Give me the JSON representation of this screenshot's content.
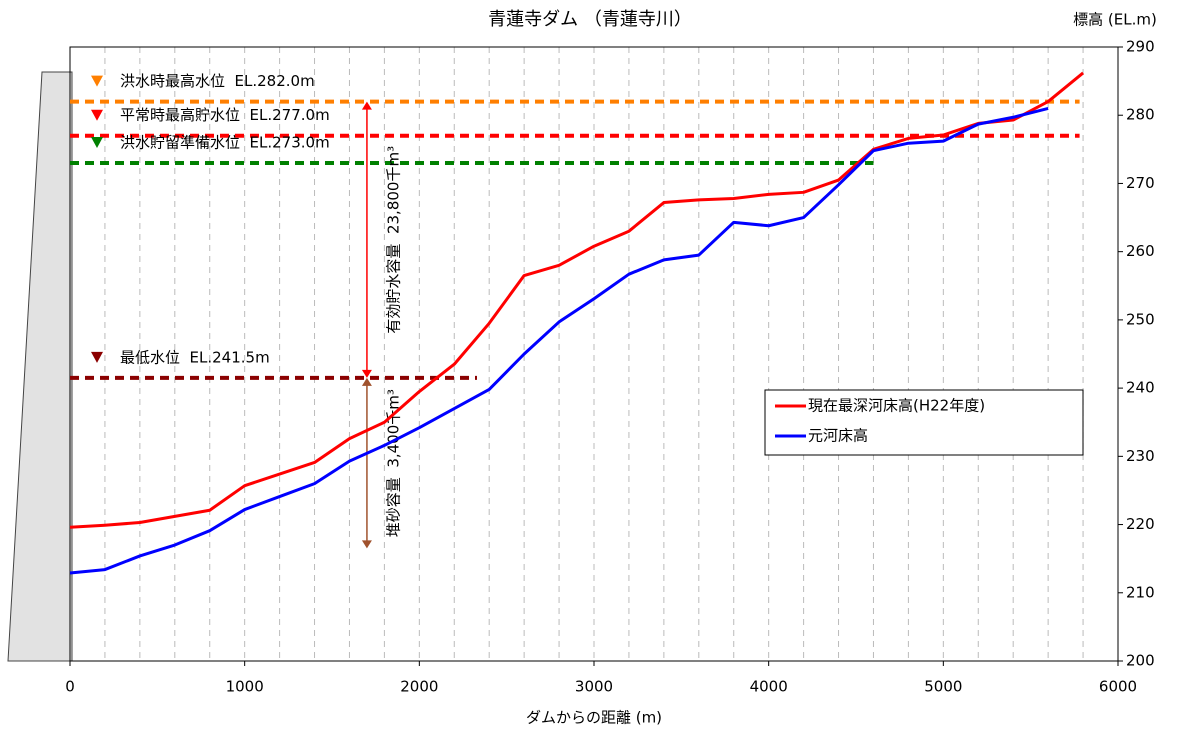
{
  "chart_data": {
    "type": "line",
    "title": "青蓮寺ダム （青蓮寺川）",
    "y_label": "標高 (EL.m)",
    "x_label": "ダムからの距離 (m)",
    "x": [
      0,
      200,
      400,
      600,
      800,
      1000,
      1200,
      1400,
      1600,
      1800,
      2000,
      2200,
      2400,
      2600,
      2800,
      3000,
      3200,
      3400,
      3600,
      3800,
      4000,
      4200,
      4400,
      4600,
      4800,
      5000,
      5200,
      5400,
      5600,
      5800
    ],
    "series": [
      {
        "name": "現在最深河床高(H22年度)",
        "color": "#ff0000",
        "values": [
          219.6,
          219.9,
          220.3,
          221.2,
          222.1,
          225.7,
          227.4,
          229.1,
          232.6,
          235,
          239.5,
          243.5,
          249.5,
          256.5,
          258,
          260.8,
          263,
          267.2,
          267.6,
          267.8,
          268.4,
          268.7,
          270.5,
          275,
          276.6,
          277.1,
          278.8,
          279.3,
          282,
          286.2
        ]
      },
      {
        "name": "元河床高",
        "color": "#0000ff",
        "values": [
          212.9,
          213.4,
          215.4,
          217,
          219.1,
          222.2,
          224.1,
          226,
          229.3,
          231.6,
          234.2,
          237,
          239.8,
          245,
          249.7,
          253.1,
          256.7,
          258.8,
          259.5,
          264.3,
          263.8,
          265,
          269.8,
          274.8,
          275.9,
          276.2,
          278.7,
          279.7,
          281,
          null
        ]
      }
    ],
    "reference_lines": [
      {
        "label": "洪水時最高水位  EL.282.0m",
        "value": 282,
        "x_end": 5780,
        "color": "#ff7f00"
      },
      {
        "label": "平常時最高貯水位  EL.277.0m",
        "value": 277,
        "x_end": 5780,
        "color": "#ff0000"
      },
      {
        "label": "洪水貯留準備水位  EL.273.0m",
        "value": 273,
        "x_end": 4600,
        "color": "#008000"
      },
      {
        "label": "最低水位  EL.241.5m",
        "value": 241.5,
        "x_end": 2330,
        "color": "#8b0000"
      }
    ],
    "annotations": [
      {
        "text": "有効貯水容量  23,800千m³",
        "x": 1700,
        "y_range": [
          282,
          241.5
        ],
        "color": "#ff0000"
      },
      {
        "text": "堆砂容量  3,400千m³",
        "x": 1700,
        "y_range": [
          241.5,
          216.5
        ],
        "color": "#a0522d"
      }
    ],
    "xlim": [
      0,
      6000
    ],
    "xticks": [
      0,
      1000,
      2000,
      3000,
      4000,
      5000,
      6000
    ],
    "ylim": [
      200,
      290
    ],
    "yticks": [
      200,
      210,
      220,
      230,
      240,
      250,
      260,
      270,
      280,
      290
    ],
    "grid_x_step": 200
  }
}
